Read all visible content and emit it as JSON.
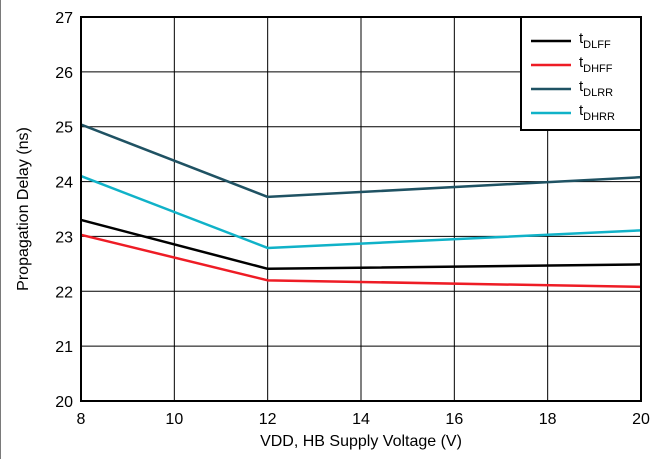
{
  "chart_data": {
    "type": "line",
    "title": "",
    "xlabel": "VDD, HB Supply Voltage (V)",
    "ylabel": "Propagation Delay (ns)",
    "xlim": [
      8,
      20
    ],
    "ylim": [
      20,
      27
    ],
    "xticks": [
      8,
      10,
      12,
      14,
      16,
      18,
      20
    ],
    "yticks": [
      20,
      21,
      22,
      23,
      24,
      25,
      26,
      27
    ],
    "x": [
      8,
      12,
      20
    ],
    "grid": true,
    "legend_position": "top-right",
    "series": [
      {
        "name": "t",
        "sub": "DLFF",
        "color": "#000000",
        "values": [
          23.3,
          22.41,
          22.49
        ]
      },
      {
        "name": "t",
        "sub": "DHFF",
        "color": "#ee1c25",
        "values": [
          23.03,
          22.2,
          22.08
        ]
      },
      {
        "name": "t",
        "sub": "DLRR",
        "color": "#1f5263",
        "values": [
          25.04,
          23.72,
          24.08
        ]
      },
      {
        "name": "t",
        "sub": "DHRR",
        "color": "#10b2c8",
        "values": [
          24.1,
          22.79,
          23.11
        ]
      }
    ]
  }
}
